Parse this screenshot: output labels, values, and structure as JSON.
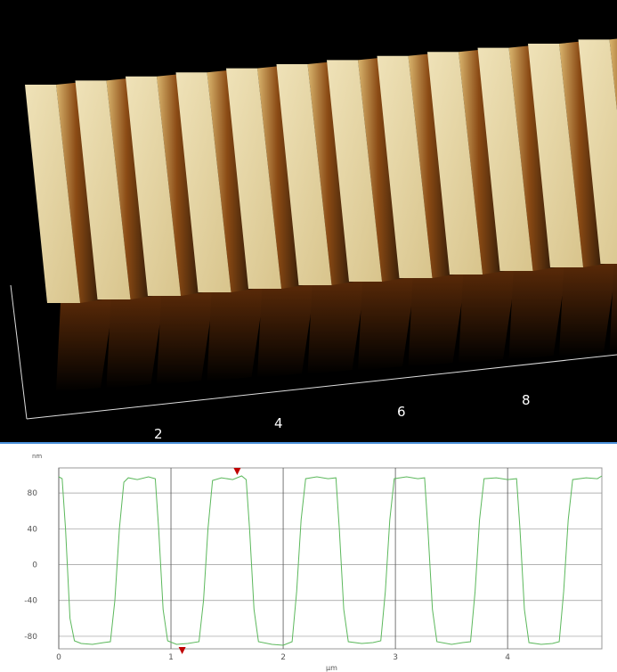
{
  "view3d": {
    "axis_labels": [
      "2",
      "4",
      "6",
      "8"
    ]
  },
  "chart_data": {
    "type": "line",
    "y_unit": "nm",
    "x_label": "µm",
    "xlim": [
      0,
      4.84
    ],
    "ylim": [
      -94,
      108
    ],
    "xticks": [
      0,
      1,
      2,
      3,
      4
    ],
    "yticks": [
      80,
      40,
      0,
      -40,
      -80
    ],
    "grid": true,
    "cursors": [
      {
        "x": 1.1,
        "y": -96
      },
      {
        "x": 1.59,
        "y": 104
      }
    ],
    "cursor_color": "#c00000",
    "series": [
      {
        "color": "#5cb85c",
        "x": [
          0,
          0.03,
          0.06,
          0.1,
          0.14,
          0.2,
          0.3,
          0.4,
          0.46,
          0.5,
          0.54,
          0.58,
          0.62,
          0.7,
          0.8,
          0.86,
          0.89,
          0.93,
          0.97,
          1.05,
          1.15,
          1.25,
          1.29,
          1.33,
          1.37,
          1.45,
          1.55,
          1.63,
          1.67,
          1.7,
          1.74,
          1.78,
          1.9,
          2.0,
          2.08,
          2.12,
          2.16,
          2.2,
          2.3,
          2.4,
          2.47,
          2.5,
          2.54,
          2.58,
          2.7,
          2.8,
          2.87,
          2.91,
          2.95,
          2.99,
          3.1,
          3.2,
          3.26,
          3.29,
          3.33,
          3.37,
          3.5,
          3.6,
          3.67,
          3.71,
          3.75,
          3.79,
          3.9,
          4.0,
          4.08,
          4.11,
          4.15,
          4.19,
          4.3,
          4.4,
          4.46,
          4.5,
          4.54,
          4.58,
          4.7,
          4.8,
          4.84
        ],
        "values": [
          98,
          96,
          40,
          -60,
          -85,
          -88,
          -89,
          -87,
          -86,
          -40,
          40,
          92,
          97,
          95,
          98,
          96,
          40,
          -50,
          -85,
          -89,
          -88,
          -86,
          -40,
          40,
          94,
          97,
          95,
          99,
          95,
          40,
          -50,
          -86,
          -89,
          -90,
          -86,
          -30,
          50,
          96,
          98,
          96,
          97,
          40,
          -50,
          -86,
          -88,
          -87,
          -85,
          -30,
          50,
          96,
          98,
          96,
          97,
          40,
          -50,
          -86,
          -89,
          -87,
          -86,
          -30,
          50,
          96,
          97,
          95,
          96,
          40,
          -50,
          -87,
          -89,
          -88,
          -86,
          -30,
          50,
          95,
          97,
          96,
          99
        ]
      }
    ]
  }
}
